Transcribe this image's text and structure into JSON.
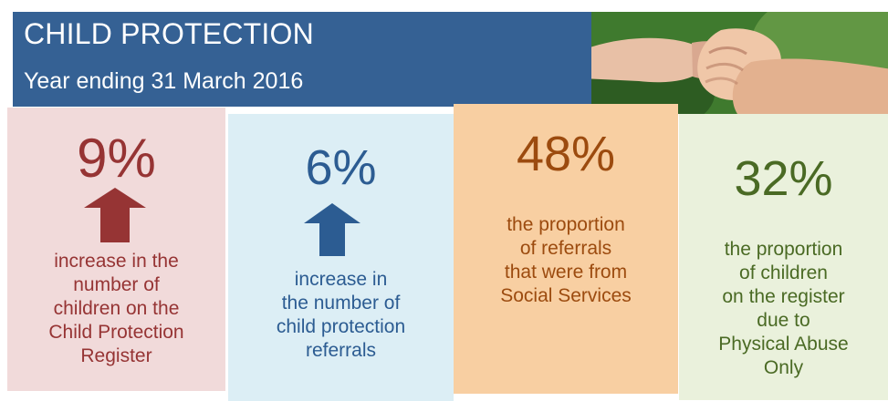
{
  "header": {
    "title": "CHILD PROTECTION",
    "subtitle": "Year ending 31 March 2016"
  },
  "stats": [
    {
      "value": "9%",
      "icon": "up-arrow-icon",
      "description": "increase in the\nnumber of\nchildren on the\nChild Protection\nRegister",
      "color": "#963434",
      "background": "#f1dada"
    },
    {
      "value": "6%",
      "icon": "up-arrow-icon",
      "description": "increase in\nthe number of\nchild protection\nreferrals",
      "color": "#2c5c92",
      "background": "#dceef5"
    },
    {
      "value": "48%",
      "description": "the proportion\nof referrals\nthat were from\nSocial Services",
      "color": "#9c4b0f",
      "background": "#f8cfa2"
    },
    {
      "value": "32%",
      "description": "the proportion\nof children\non the register\ndue to\nPhysical Abuse\nOnly",
      "color": "#4a6a24",
      "background": "#eaf1dc"
    }
  ],
  "colors": {
    "header_bg": "#356194",
    "header_text": "#ffffff"
  }
}
